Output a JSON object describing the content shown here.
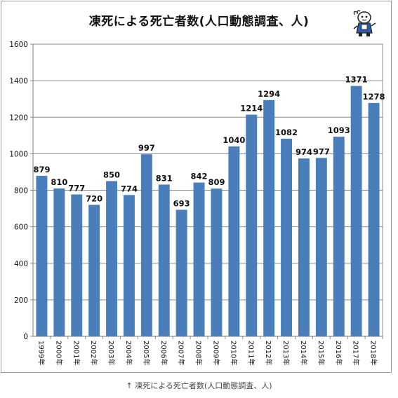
{
  "chart_data": {
    "type": "bar",
    "title": "凍死による死亡者数(人口動態調査、人)",
    "categories": [
      "1999年",
      "2000年",
      "2001年",
      "2002年",
      "2003年",
      "2004年",
      "2005年",
      "2006年",
      "2007年",
      "2008年",
      "2009年",
      "2010年",
      "2011年",
      "2012年",
      "2013年",
      "2014年",
      "2015年",
      "2016年",
      "2017年",
      "2018年"
    ],
    "values": [
      879,
      810,
      777,
      720,
      850,
      774,
      997,
      831,
      693,
      842,
      809,
      1040,
      1214,
      1294,
      1082,
      974,
      977,
      1093,
      1371,
      1278
    ],
    "value_labels": [
      "879",
      "810",
      "777",
      "720",
      "850",
      "774",
      "997",
      "831",
      "693",
      "842",
      "809",
      "1040",
      "1214",
      "1294",
      "1082",
      "974",
      "977",
      "1093",
      "1371",
      "1278"
    ],
    "yticks": [
      "0",
      "200",
      "400",
      "600",
      "800",
      "1000",
      "1200",
      "1400",
      "1600"
    ],
    "ylim": [
      0,
      1600
    ],
    "grid": true,
    "legend": "none",
    "bar_color": "#4a7ebb"
  },
  "caption": "↑ 凍死による死亡者数(人口動態調査、人)",
  "mascot_icon": "mascot-character-icon"
}
